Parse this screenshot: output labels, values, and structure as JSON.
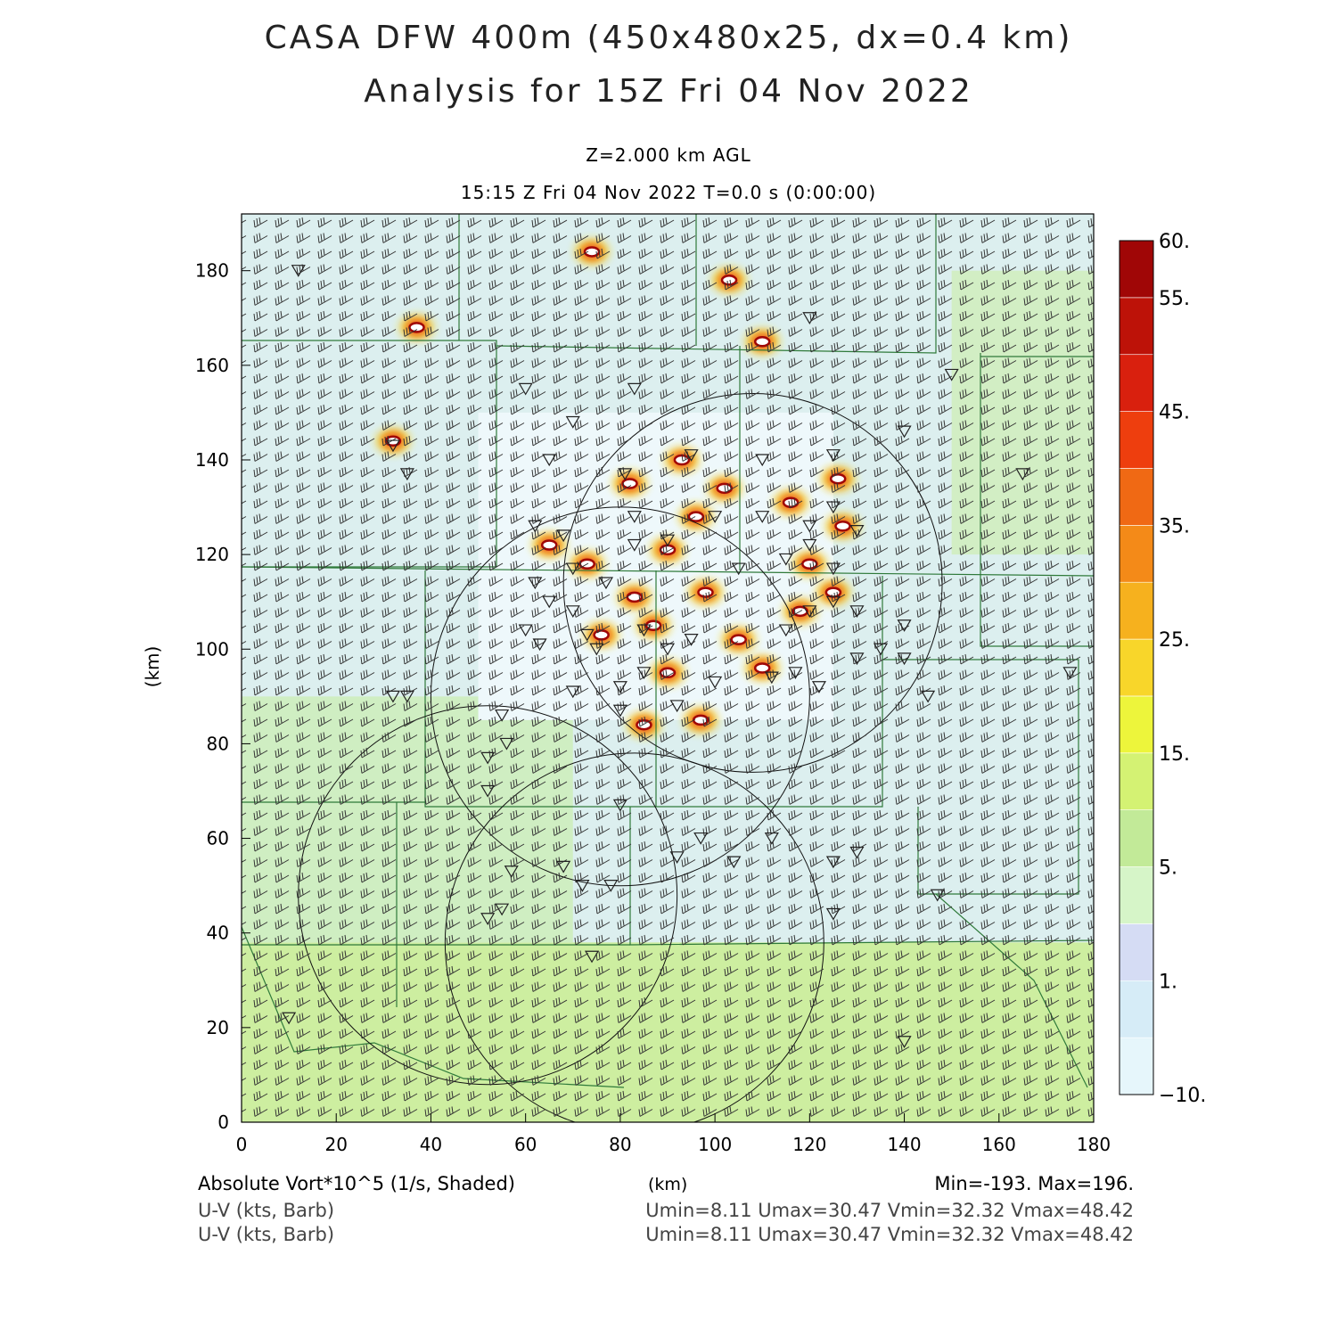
{
  "header": {
    "title_line1": "CASA DFW 400m (450x480x25, dx=0.4 km)",
    "title_line2": "Analysis for 15Z Fri 04 Nov 2022",
    "level": "Z=2.000 km AGL",
    "time": "15:15 Z Fri 04 Nov 2022    T=0.0 s (0:00:00)"
  },
  "footer": {
    "field_label": "Absolute Vort*10^5 (1/s, Shaded)",
    "x_unit": "(km)",
    "minmax": "Min=-193. Max=196.",
    "barb1_label": "U-V (kts, Barb)",
    "barb1_stats": "Umin=8.11 Umax=30.47 Vmin=32.32 Vmax=48.42",
    "barb2_label": "U-V (kts, Barb)",
    "barb2_stats": "Umin=8.11 Umax=30.47 Vmin=32.32 Vmax=48.42"
  },
  "chart_data": {
    "type": "heatmap",
    "title": "CASA DFW 400m (450x480x25, dx=0.4 km)",
    "subtitle": "Analysis for 15Z Fri 04 Nov 2022",
    "xlabel": "(km)",
    "ylabel": "(km)",
    "xlim": [
      0,
      180
    ],
    "ylim": [
      0,
      192
    ],
    "x_ticks": [
      0,
      20,
      40,
      60,
      80,
      100,
      120,
      140,
      160,
      180
    ],
    "y_ticks": [
      0,
      20,
      40,
      60,
      80,
      100,
      120,
      140,
      160,
      180
    ],
    "x_tick_labels": [
      "0",
      "20",
      "40",
      "60",
      "80",
      "100",
      "120",
      "140",
      "160",
      "180"
    ],
    "y_tick_labels": [
      "0",
      "20",
      "40",
      "60",
      "80",
      "100",
      "120",
      "140",
      "160",
      "180"
    ],
    "colorbar_levels": [
      -10,
      1,
      5,
      15,
      25,
      35,
      45,
      55,
      60
    ],
    "colorbar_labels": [
      "−10.",
      "1.",
      "5.",
      "15.",
      "25.",
      "35.",
      "45.",
      "55.",
      "60."
    ],
    "colorbar_colors": [
      "#e6f6fb",
      "#d6ecf7",
      "#d5dcf4",
      "#d6f5c8",
      "#c2ea98",
      "#d4f273",
      "#edf53b",
      "#f8d62a",
      "#f6b11e",
      "#f48a18",
      "#f06914",
      "#ee3e0e",
      "#d9200e",
      "#bd1208",
      "#a00606"
    ],
    "wind_barbs": {
      "u_range_kts": [
        8.11,
        30.47
      ],
      "v_range_kts": [
        32.32,
        48.42
      ],
      "direction": "southwesterly"
    },
    "radar_rings": [
      {
        "center_km": [
          52,
          48
        ],
        "radius_km": 40
      },
      {
        "center_km": [
          83,
          38
        ],
        "radius_km": 40
      },
      {
        "center_km": [
          80,
          90
        ],
        "radius_km": 40
      },
      {
        "center_km": [
          108,
          114
        ],
        "radius_km": 40
      }
    ],
    "vorticity_maxima_km": [
      [
        37,
        168
      ],
      [
        74,
        184
      ],
      [
        32,
        144
      ],
      [
        73,
        118
      ],
      [
        65,
        122
      ],
      [
        82,
        135
      ],
      [
        93,
        140
      ],
      [
        110,
        165
      ],
      [
        103,
        178
      ],
      [
        90,
        121
      ],
      [
        98,
        112
      ],
      [
        76,
        103
      ],
      [
        87,
        105
      ],
      [
        105,
        102
      ],
      [
        110,
        96
      ],
      [
        90,
        95
      ],
      [
        97,
        85
      ],
      [
        85,
        84
      ],
      [
        118,
        108
      ],
      [
        125,
        112
      ],
      [
        127,
        126
      ],
      [
        116,
        131
      ],
      [
        120,
        118
      ],
      [
        102,
        134
      ],
      [
        126,
        136
      ],
      [
        96,
        128
      ],
      [
        83,
        111
      ]
    ],
    "min": -193,
    "max": 196,
    "u_min": 8.11,
    "u_max": 30.47,
    "v_min": 32.32,
    "v_max": 48.42
  }
}
